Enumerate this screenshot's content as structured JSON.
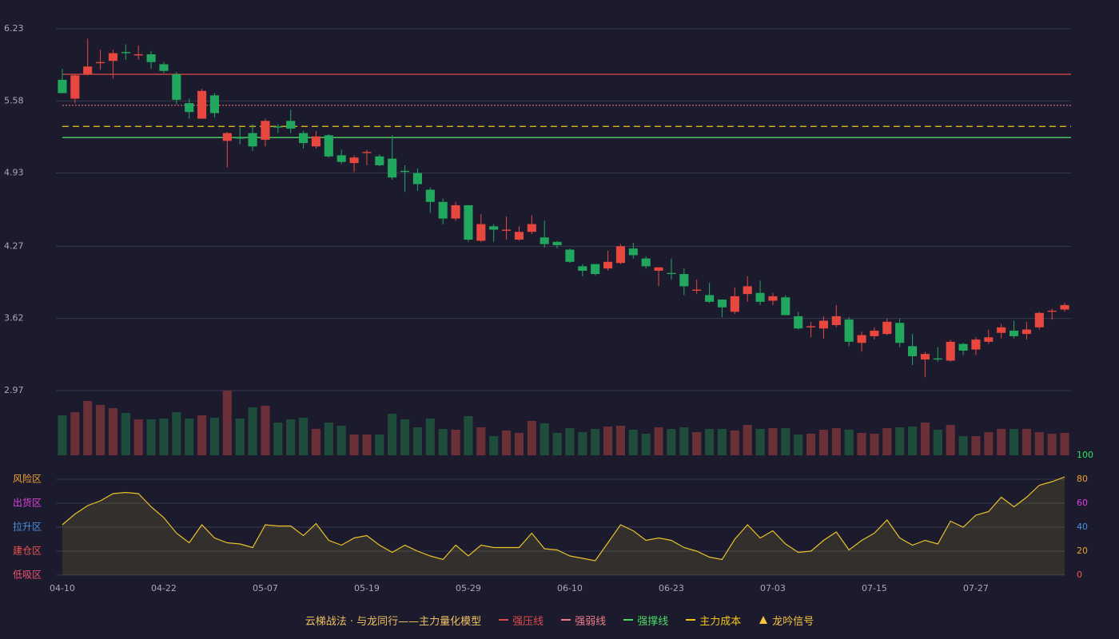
{
  "chart_data": [
    {
      "type": "candlestick",
      "open": [
        5.77,
        5.6,
        5.82,
        5.92,
        5.94,
        6.02,
        5.99,
        6.0,
        5.91,
        5.82,
        5.56,
        5.42,
        5.63,
        5.22,
        5.25,
        5.29,
        5.23,
        5.35,
        5.4,
        5.29,
        5.17,
        5.27,
        5.09,
        5.02,
        5.11,
        5.08,
        5.06,
        4.95,
        4.93,
        4.78,
        4.67,
        4.52,
        4.64,
        4.32,
        4.45,
        4.41,
        4.33,
        4.4,
        4.35,
        4.31,
        4.24,
        4.09,
        4.11,
        4.07,
        4.12,
        4.25,
        4.16,
        4.05,
        4.03,
        4.02,
        3.87,
        3.83,
        3.79,
        3.68,
        3.84,
        3.85,
        3.78,
        3.81,
        3.64,
        3.54,
        3.53,
        3.56,
        3.61,
        3.4,
        3.46,
        3.48,
        3.58,
        3.37,
        3.25,
        3.26,
        3.24,
        3.39,
        3.34,
        3.41,
        3.49,
        3.51,
        3.48,
        3.54,
        3.68,
        3.7
      ],
      "high": [
        5.87,
        5.82,
        6.14,
        6.04,
        6.04,
        6.09,
        6.08,
        6.03,
        5.93,
        5.84,
        5.6,
        5.69,
        5.65,
        5.3,
        5.34,
        5.37,
        5.42,
        5.37,
        5.5,
        5.31,
        5.31,
        5.28,
        5.14,
        5.09,
        5.14,
        5.1,
        5.27,
        5.0,
        4.97,
        4.8,
        4.7,
        4.67,
        4.64,
        4.56,
        4.47,
        4.54,
        4.45,
        4.55,
        4.5,
        4.32,
        4.25,
        4.11,
        4.11,
        4.23,
        4.29,
        4.3,
        4.18,
        4.08,
        4.16,
        4.07,
        3.97,
        3.94,
        3.79,
        3.9,
        4.0,
        3.96,
        3.85,
        3.83,
        3.68,
        3.59,
        3.64,
        3.74,
        3.63,
        3.5,
        3.54,
        3.62,
        3.62,
        3.48,
        3.32,
        3.36,
        3.43,
        3.4,
        3.45,
        3.52,
        3.57,
        3.6,
        3.59,
        3.68,
        3.71,
        3.76
      ],
      "low": [
        5.65,
        5.56,
        5.81,
        5.86,
        5.78,
        5.95,
        5.95,
        5.87,
        5.83,
        5.55,
        5.42,
        5.42,
        5.43,
        4.98,
        5.19,
        5.13,
        5.17,
        5.29,
        5.29,
        5.15,
        5.15,
        5.07,
        5.01,
        4.94,
        5.0,
        4.99,
        4.87,
        4.76,
        4.77,
        4.57,
        4.47,
        4.5,
        4.31,
        4.31,
        4.31,
        4.33,
        4.32,
        4.38,
        4.26,
        4.25,
        4.12,
        4.0,
        4.01,
        4.05,
        4.11,
        4.16,
        4.07,
        3.91,
        3.97,
        3.83,
        3.84,
        3.76,
        3.63,
        3.66,
        3.77,
        3.74,
        3.74,
        3.65,
        3.52,
        3.45,
        3.44,
        3.54,
        3.37,
        3.32,
        3.43,
        3.47,
        3.36,
        3.2,
        3.09,
        3.23,
        3.23,
        3.29,
        3.29,
        3.39,
        3.44,
        3.44,
        3.43,
        3.52,
        3.61,
        3.68
      ],
      "close": [
        5.65,
        5.81,
        5.89,
        5.93,
        6.01,
        6.01,
        6.0,
        5.93,
        5.85,
        5.59,
        5.48,
        5.67,
        5.47,
        5.29,
        5.24,
        5.17,
        5.4,
        5.34,
        5.33,
        5.2,
        5.26,
        5.08,
        5.03,
        5.07,
        5.12,
        5.0,
        4.89,
        4.94,
        4.83,
        4.67,
        4.52,
        4.64,
        4.33,
        4.47,
        4.42,
        4.42,
        4.4,
        4.47,
        4.29,
        4.28,
        4.13,
        4.05,
        4.02,
        4.13,
        4.27,
        4.19,
        4.09,
        4.08,
        4.02,
        3.91,
        3.88,
        3.77,
        3.72,
        3.82,
        3.91,
        3.77,
        3.82,
        3.65,
        3.53,
        3.55,
        3.6,
        3.64,
        3.41,
        3.47,
        3.51,
        3.59,
        3.4,
        3.28,
        3.3,
        3.25,
        3.41,
        3.33,
        3.43,
        3.45,
        3.54,
        3.46,
        3.52,
        3.67,
        3.69,
        3.74
      ],
      "up_color": "#e8473f",
      "down_color": "#22a85e",
      "ylim": [
        2.97,
        6.23
      ],
      "yticks": [
        2.97,
        3.62,
        4.27,
        4.93,
        5.58,
        6.23
      ],
      "grid": true,
      "levels": [
        {
          "name": "强压线",
          "value": 5.82,
          "color": "#e04a4a",
          "style": "solid"
        },
        {
          "name": "强弱线",
          "value": 5.54,
          "color": "#f07a8a",
          "style": "dotted"
        },
        {
          "name": "强撑线",
          "value": 5.25,
          "color": "#4cd964",
          "style": "solid"
        },
        {
          "name": "主力成本",
          "value": 5.35,
          "color": "#f5c518",
          "style": "dashed"
        }
      ],
      "signal": {
        "name": "龙吟信号",
        "color": "#f5c542"
      }
    },
    {
      "type": "bar",
      "values": [
        50,
        54,
        68,
        63,
        59,
        53,
        45,
        45,
        46,
        54,
        46,
        50,
        47,
        81,
        46,
        60,
        62,
        41,
        45,
        47,
        33,
        41,
        37,
        26,
        26,
        26,
        52,
        45,
        35,
        46,
        33,
        32,
        49,
        35,
        24,
        31,
        28,
        43,
        40,
        28,
        34,
        29,
        33,
        36,
        37,
        32,
        27,
        35,
        33,
        35,
        29,
        33,
        33,
        31,
        38,
        33,
        34,
        34,
        26,
        27,
        32,
        34,
        32,
        28,
        27,
        34,
        35,
        36,
        41,
        32,
        38,
        24,
        24,
        29,
        33,
        33,
        33,
        29,
        27,
        28
      ],
      "up_color": "#6b2f37",
      "down_color": "#1f4d3c"
    },
    {
      "type": "area",
      "categories": [
        "04-10",
        null,
        null,
        null,
        null,
        null,
        null,
        null,
        "04-22",
        null,
        null,
        null,
        null,
        null,
        null,
        null,
        "05-07",
        null,
        null,
        null,
        null,
        null,
        null,
        null,
        "05-19",
        null,
        null,
        null,
        null,
        null,
        null,
        null,
        "05-29",
        null,
        null,
        null,
        null,
        null,
        null,
        null,
        "06-10",
        null,
        null,
        null,
        null,
        null,
        null,
        null,
        "06-23",
        null,
        null,
        null,
        null,
        null,
        null,
        null,
        "07-03",
        null,
        null,
        null,
        null,
        null,
        null,
        null,
        "07-15",
        null,
        null,
        null,
        null,
        null,
        null,
        null,
        "07-27",
        null,
        null,
        null,
        null,
        null,
        null,
        null
      ],
      "values": [
        42,
        51,
        58,
        62,
        68,
        69,
        68,
        57,
        48,
        35,
        27,
        42,
        31,
        27,
        26,
        23,
        42,
        41,
        41,
        33,
        43,
        29,
        25,
        31,
        33,
        25,
        19,
        25,
        20,
        16,
        13,
        25,
        16,
        25,
        23,
        23,
        23,
        35,
        22,
        21,
        16,
        14,
        12,
        27,
        42,
        37,
        29,
        31,
        29,
        23,
        20,
        15,
        13,
        30,
        42,
        31,
        37,
        26,
        19,
        20,
        29,
        36,
        21,
        29,
        35,
        46,
        31,
        25,
        29,
        26,
        45,
        40,
        50,
        53,
        65,
        57,
        65,
        75,
        78,
        82
      ],
      "color": "#e8c22a",
      "ylim": [
        0,
        100
      ],
      "yticks": [
        0,
        20,
        40,
        60,
        80,
        100
      ],
      "ytick_colors": [
        "#ff4d4d",
        "#f0a030",
        "#4a90e2",
        "#e040e0",
        "#f0a030",
        "#33e060"
      ],
      "zones": [
        {
          "label": "风险区",
          "value": 80,
          "color": "#f0a030"
        },
        {
          "label": "出货区",
          "value": 60,
          "color": "#e040e0"
        },
        {
          "label": "拉升区",
          "value": 40,
          "color": "#4a90e2"
        },
        {
          "label": "建仓区",
          "value": 20,
          "color": "#f05050"
        },
        {
          "label": "低吸区",
          "value": 0,
          "color": "#f05070"
        }
      ]
    }
  ],
  "legend": {
    "title": "云梯战法 · 与龙同行——主力量化模型",
    "title_color": "#f0c060"
  }
}
